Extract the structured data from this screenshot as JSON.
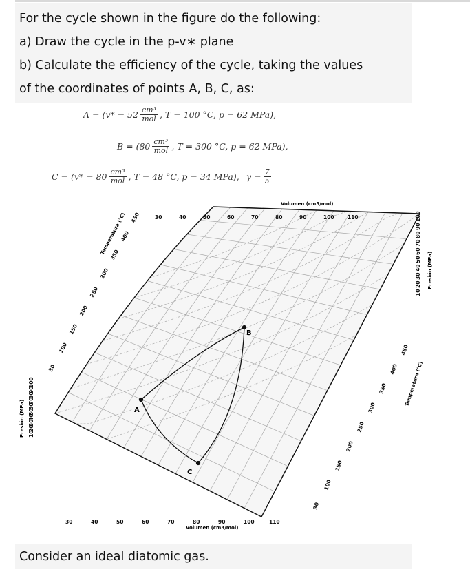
{
  "problem": {
    "line1": "For the cycle shown in the figure do the following:",
    "line2": "a) Draw the cycle in the p-v∗ plane",
    "line3": "b) Calculate the efficiency of the cycle, taking the values",
    "line4": "of the coordinates of points A, B, C, as:"
  },
  "formulas": {
    "A": {
      "lead": "A = (v* = 52",
      "num": "cm³",
      "den": "mol",
      "rest": ", T = 100 °C, p = 62 MPa),"
    },
    "B": {
      "lead": "B = (80",
      "num": "cm³",
      "den": "mol",
      "rest": ", T = 300 °C, p = 62 MPa),"
    },
    "C": {
      "lead": "C = (v* = 80",
      "num": "cm³",
      "den": "mol",
      "rest": ", T = 48 °C, p = 34 MPa),",
      "gamma": "γ =",
      "gnum": "7",
      "gden": "5"
    }
  },
  "figure": {
    "volume_label_top": "Volumen (cm3/mol)",
    "volume_label_bottom": "Volumen (cm3/mol)",
    "temperature_label_left": "Temperatura (°C)",
    "temperature_label_right": "Temperatura (°C)",
    "pressure_label_left": "Presión (MPa)",
    "pressure_label_right": "Presión (MPa)",
    "top_volume_ticks": [
      "30",
      "40",
      "50",
      "60",
      "70",
      "80",
      "90",
      "100",
      "110"
    ],
    "bottom_volume_ticks": [
      "30",
      "40",
      "50",
      "60",
      "70",
      "80",
      "90",
      "100",
      "110"
    ],
    "left_temp_ticks": [
      "30",
      "100",
      "150",
      "200",
      "250",
      "300",
      "350",
      "400",
      "450"
    ],
    "right_temp_ticks": [
      "30",
      "100",
      "150",
      "200",
      "250",
      "300",
      "350",
      "400",
      "450"
    ],
    "left_pressure_ticks": [
      "10",
      "20",
      "30",
      "40",
      "50",
      "60",
      "70",
      "80",
      "90",
      "100"
    ],
    "right_pressure_ticks": [
      "10",
      "20",
      "30",
      "40",
      "50",
      "60",
      "70",
      "80",
      "90",
      "100"
    ],
    "point_labels": {
      "A": "A",
      "B": "B",
      "C": "C"
    }
  },
  "footer": {
    "text": "Consider an ideal diatomic gas."
  }
}
